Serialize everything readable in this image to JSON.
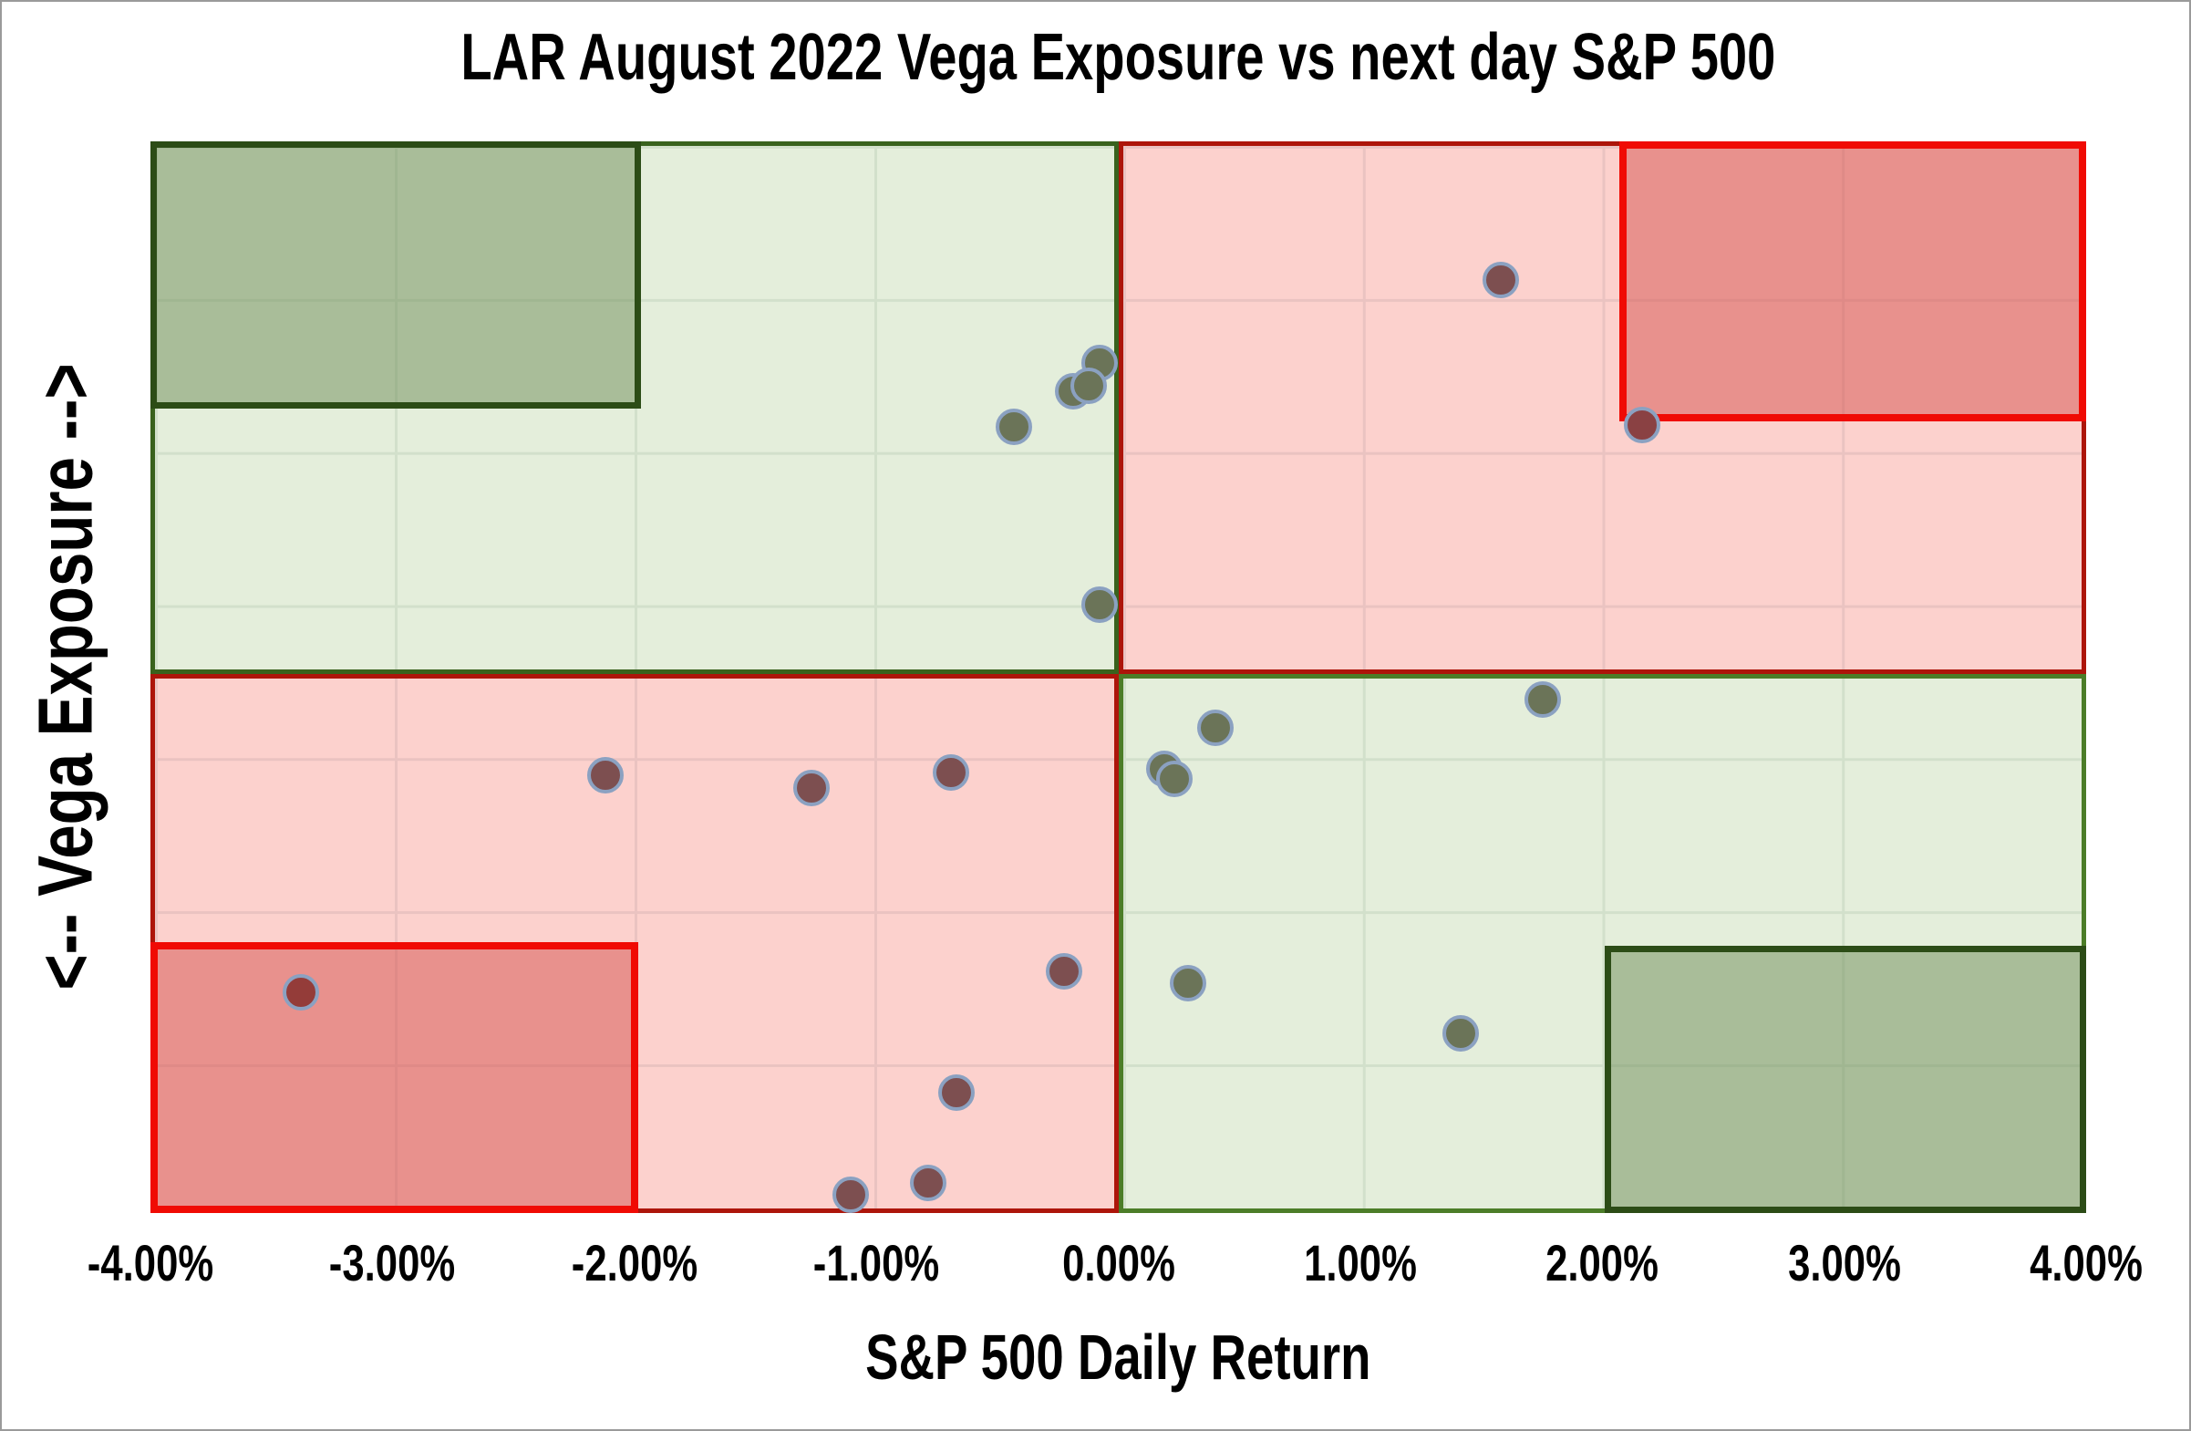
{
  "title": "LAR August 2022 Vega Exposure vs next day S&P 500",
  "x_axis": {
    "label": "S&P 500 Daily Return",
    "ticks": [
      "-4.00%",
      "-3.00%",
      "-2.00%",
      "-1.00%",
      "0.00%",
      "1.00%",
      "2.00%",
      "3.00%",
      "4.00%"
    ]
  },
  "y_axis": {
    "label": "<-- Vega Exposure -->"
  },
  "colors": {
    "background": "#ffffff",
    "quadrant_green_fill": "#e4eedb",
    "quadrant_green_gridline": "#d2e0cb",
    "quadrant_pink_fill": "#fcd1cd",
    "quadrant_pink_gridline": "#eac3c1",
    "quadrant_green_border_top_left": "#39621d",
    "quadrant_green_border_bottom_right": "#4c7d28",
    "quadrant_red_border": "#ad150a",
    "corner_box_green_fill": "#a9bd99",
    "corner_box_green_border": "#2c4c16",
    "corner_box_red_fill": "#e8918d",
    "corner_box_red_border": "#f00b04",
    "point_outline": "#8ba1c1",
    "point_fills": {
      "olive": "#6b7458",
      "maroon": "#7d4f50",
      "box_red": "#8a4143",
      "box_dark_red": "#943c39"
    }
  },
  "chart_data": {
    "type": "scatter",
    "title": "LAR August 2022 Vega Exposure vs next day S&P 500",
    "xlabel": "S&P 500 Daily Return",
    "ylabel": "<-- Vega Exposure -->",
    "xlim": [
      -4,
      4
    ],
    "ylim": [
      -3.5,
      3.5
    ],
    "x_tick_labels": [
      "-4.00%",
      "-3.00%",
      "-2.00%",
      "-1.00%",
      "0.00%",
      "1.00%",
      "2.00%",
      "3.00%",
      "4.00%"
    ],
    "y_tick_labels": [],
    "grid": true,
    "gridline_spacing": {
      "x_percent_per_line": 1.0,
      "y_intervals_total": 7
    },
    "legend": "none",
    "quadrants": {
      "top_left": {
        "x_range": [
          -4,
          0
        ],
        "vega": "positive",
        "fill": "light-green",
        "border": "dark-green"
      },
      "top_right": {
        "x_range": [
          0,
          4
        ],
        "vega": "positive",
        "fill": "light-pink",
        "border": "dark-red"
      },
      "bottom_left": {
        "x_range": [
          -4,
          0
        ],
        "vega": "negative",
        "fill": "light-pink",
        "border": "dark-red"
      },
      "bottom_right": {
        "x_range": [
          0,
          4
        ],
        "vega": "negative",
        "fill": "light-green",
        "border": "green"
      }
    },
    "corner_boxes": {
      "top_left": {
        "x_range": [
          -4,
          -2
        ],
        "vega_range": [
          1.75,
          3.5
        ],
        "fill": "dark-green",
        "border": "very-dark-green"
      },
      "top_right": {
        "x_range": [
          2,
          4
        ],
        "vega_range": [
          1.72,
          3.5
        ],
        "fill": "dark-red",
        "border": "bright-red"
      },
      "bottom_left": {
        "x_range": [
          -4,
          -2
        ],
        "vega_range": [
          -3.5,
          -1.73
        ],
        "fill": "dark-red",
        "border": "bright-red"
      },
      "bottom_right": {
        "x_range": [
          2,
          4
        ],
        "vega_range": [
          -3.5,
          -1.75
        ],
        "fill": "dark-green",
        "border": "very-dark-green"
      }
    },
    "points_note": "x = S&P 500 daily return in percent (read from x axis); y = vega exposure in chart grid units (no numeric labels shown, axis spans about -3.5 to +3.5); cx/cy = position within plot area in percent (from top-left)",
    "points": [
      {
        "x": 1.58,
        "y": 2.6,
        "cx": 69.76,
        "cy": 12.94,
        "color": "maroon"
      },
      {
        "x": 2.16,
        "y": 1.65,
        "cx": 77.06,
        "cy": 26.47,
        "color": "box_red"
      },
      {
        "x": -0.08,
        "y": 2.05,
        "cx": 49.03,
        "cy": 20.68,
        "color": "olive"
      },
      {
        "x": -0.19,
        "y": 1.87,
        "cx": 47.67,
        "cy": 23.32,
        "color": "olive"
      },
      {
        "x": -0.12,
        "y": 1.9,
        "cx": 48.47,
        "cy": 22.81,
        "color": "olive"
      },
      {
        "x": -0.43,
        "y": 1.64,
        "cx": 44.61,
        "cy": 26.64,
        "color": "olive"
      },
      {
        "x": -0.08,
        "y": 0.48,
        "cx": 49.03,
        "cy": 43.23,
        "color": "olive"
      },
      {
        "x": 1.75,
        "y": -0.14,
        "cx": 71.93,
        "cy": 52.09,
        "color": "olive"
      },
      {
        "x": 0.4,
        "y": -0.33,
        "cx": 55.02,
        "cy": 54.72,
        "color": "olive"
      },
      {
        "x": 0.19,
        "y": -0.6,
        "cx": 52.38,
        "cy": 58.55,
        "color": "olive"
      },
      {
        "x": 0.23,
        "y": -0.66,
        "cx": 52.9,
        "cy": 59.49,
        "color": "olive"
      },
      {
        "x": -2.12,
        "y": -0.64,
        "cx": 23.5,
        "cy": 59.15,
        "color": "maroon"
      },
      {
        "x": -1.27,
        "y": -0.72,
        "cx": 34.15,
        "cy": 60.34,
        "color": "maroon"
      },
      {
        "x": -0.69,
        "y": -0.62,
        "cx": 41.36,
        "cy": 58.89,
        "color": "maroon"
      },
      {
        "x": -0.23,
        "y": -1.92,
        "cx": 47.2,
        "cy": 77.45,
        "color": "maroon"
      },
      {
        "x": 0.29,
        "y": -1.99,
        "cx": 53.6,
        "cy": 78.55,
        "color": "olive"
      },
      {
        "x": 1.41,
        "y": -2.32,
        "cx": 67.69,
        "cy": 83.23,
        "color": "olive"
      },
      {
        "x": -3.38,
        "y": -2.05,
        "cx": 7.77,
        "cy": 79.4,
        "color": "box_dark_red"
      },
      {
        "x": -0.67,
        "y": -2.71,
        "cx": 41.64,
        "cy": 88.77,
        "color": "maroon"
      },
      {
        "x": -1.11,
        "y": -3.37,
        "cx": 36.17,
        "cy": 98.3,
        "color": "maroon"
      },
      {
        "x": -0.79,
        "y": -3.3,
        "cx": 40.18,
        "cy": 97.19,
        "color": "maroon"
      }
    ]
  }
}
